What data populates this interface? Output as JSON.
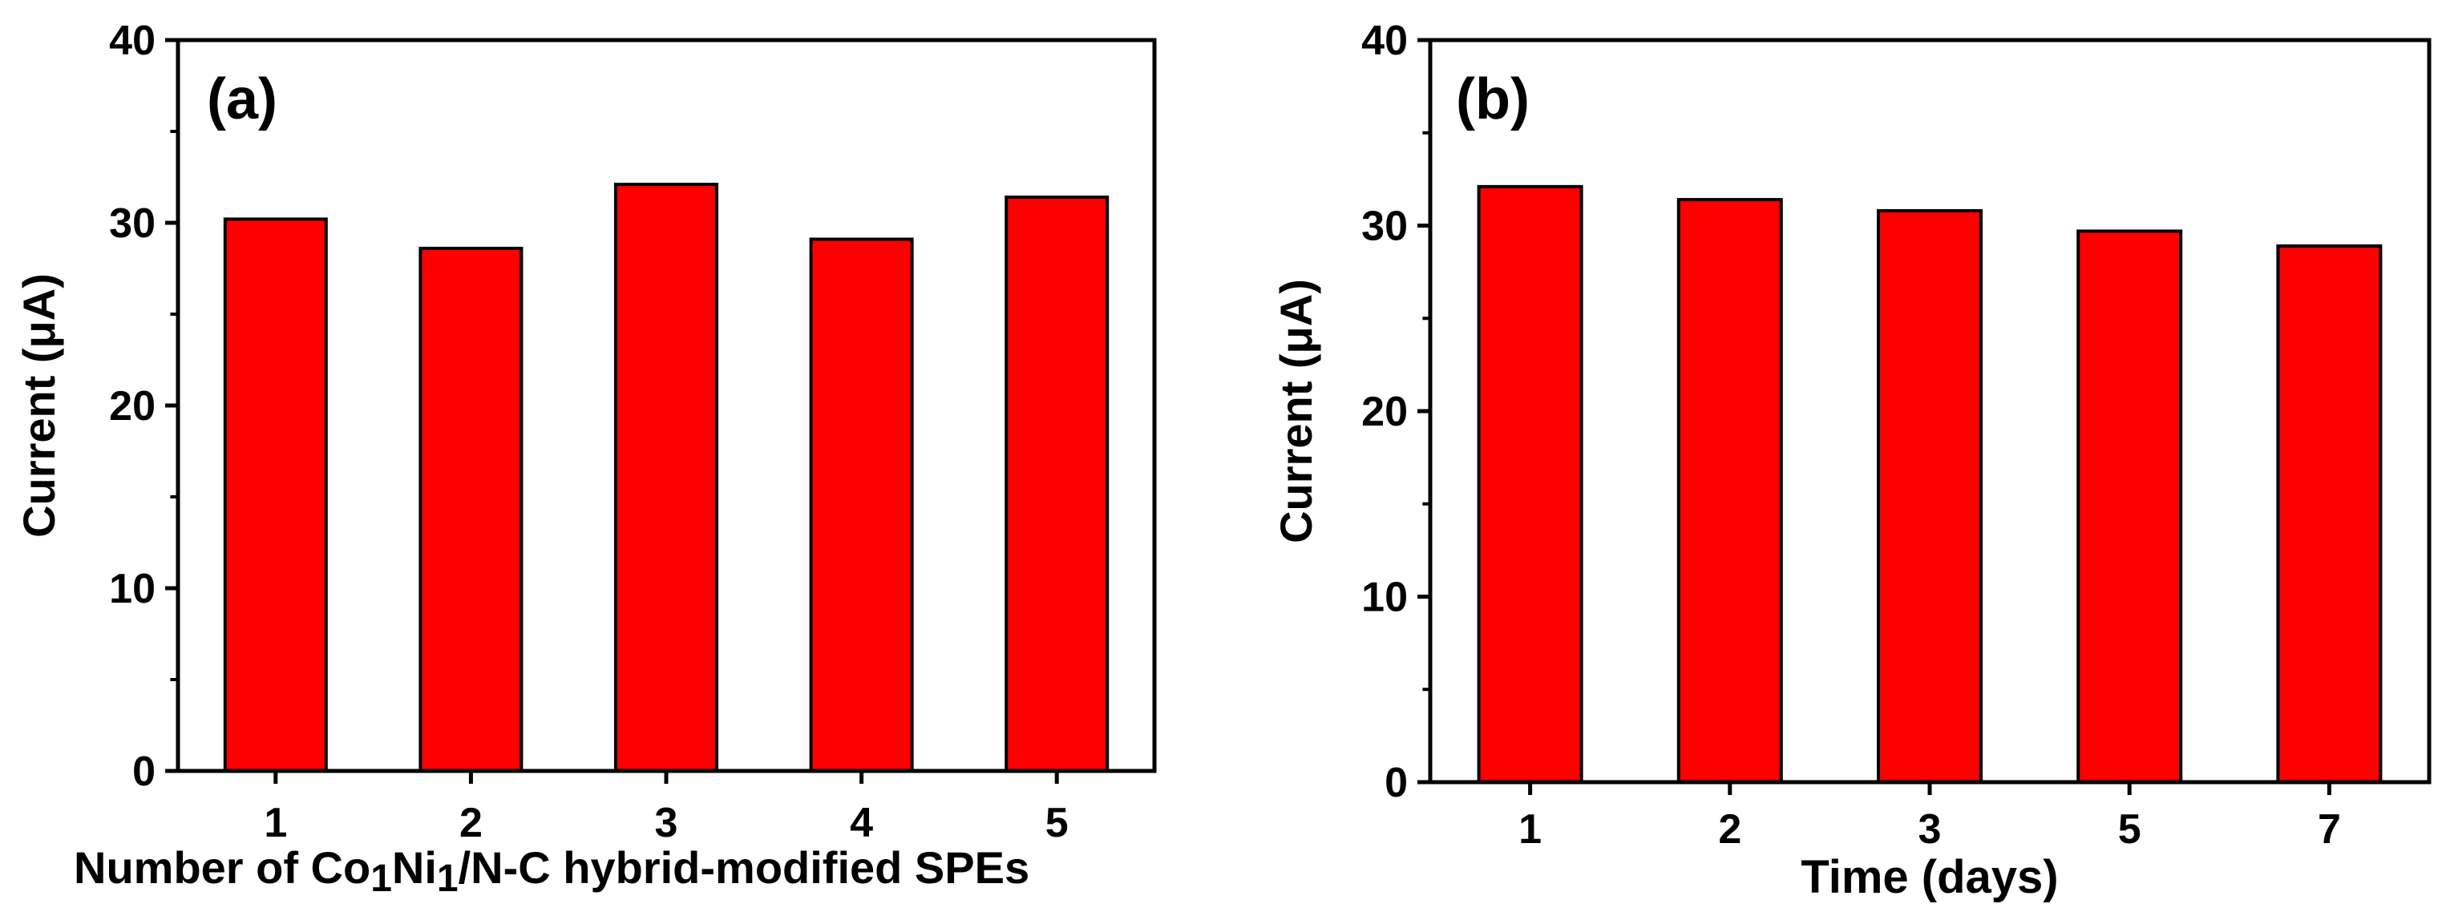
{
  "chart_data": [
    {
      "type": "bar",
      "panel_label": "(a)",
      "title": "",
      "categories": [
        "1",
        "2",
        "3",
        "4",
        "5"
      ],
      "values": [
        30.2,
        28.6,
        32.1,
        29.1,
        31.4
      ],
      "xlabel_parts": [
        "Number of  Co",
        "1",
        "Ni",
        "1",
        "/N-C hybrid-modified SPEs"
      ],
      "xlabel": "Number of  Co1Ni1/N-C hybrid-modified SPEs",
      "ylabel": "Current (μA)",
      "ylim": [
        0,
        40
      ],
      "yticks": [
        "0",
        "10",
        "20",
        "30",
        "40"
      ],
      "bar_color": "#ff0000",
      "grid": false
    },
    {
      "type": "bar",
      "panel_label": "(b)",
      "title": "",
      "categories": [
        "1",
        "2",
        "3",
        "5",
        "7"
      ],
      "values": [
        32.1,
        31.4,
        30.8,
        29.7,
        28.9
      ],
      "xlabel": "Time (days)",
      "ylabel": "Current (μA)",
      "ylim": [
        0,
        40
      ],
      "yticks": [
        "0",
        "10",
        "20",
        "30",
        "40"
      ],
      "bar_color": "#ff0000",
      "grid": false
    }
  ]
}
